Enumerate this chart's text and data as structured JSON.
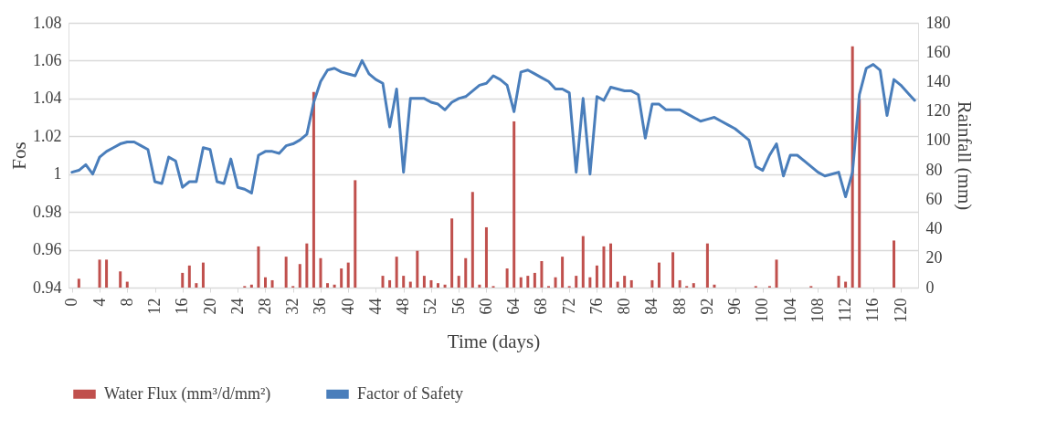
{
  "chart_data": {
    "type": "line",
    "xlabel": "Time (days)",
    "ylabel": "Fos",
    "y2label": "Rainfall (mm)",
    "x": [
      0,
      1,
      2,
      3,
      4,
      5,
      6,
      7,
      8,
      9,
      10,
      11,
      12,
      13,
      14,
      15,
      16,
      17,
      18,
      19,
      20,
      21,
      22,
      23,
      24,
      25,
      26,
      27,
      28,
      29,
      30,
      31,
      32,
      33,
      34,
      35,
      36,
      37,
      38,
      39,
      40,
      41,
      42,
      43,
      44,
      45,
      46,
      47,
      48,
      49,
      50,
      51,
      52,
      53,
      54,
      55,
      56,
      57,
      58,
      59,
      60,
      61,
      62,
      63,
      64,
      65,
      66,
      67,
      68,
      69,
      70,
      71,
      72,
      73,
      74,
      75,
      76,
      77,
      78,
      79,
      80,
      81,
      82,
      83,
      84,
      85,
      86,
      87,
      88,
      89,
      90,
      91,
      92,
      93,
      94,
      95,
      96,
      97,
      98,
      99,
      100,
      101,
      102,
      103,
      104,
      105,
      106,
      107,
      108,
      109,
      110,
      111,
      112,
      113,
      114,
      115,
      116,
      117,
      118,
      119,
      120,
      121,
      122
    ],
    "xlim": [
      -0.5,
      122.5
    ],
    "xticks": [
      0,
      4,
      8,
      12,
      16,
      20,
      24,
      28,
      32,
      36,
      40,
      44,
      48,
      52,
      56,
      60,
      64,
      68,
      72,
      76,
      80,
      84,
      88,
      92,
      96,
      100,
      104,
      108,
      112,
      116,
      120
    ],
    "ylim": [
      0.94,
      1.08
    ],
    "yticks": [
      0.94,
      0.96,
      0.98,
      1,
      1.02,
      1.04,
      1.06,
      1.08
    ],
    "y2lim": [
      0,
      180
    ],
    "y2ticks": [
      0,
      20,
      40,
      60,
      80,
      100,
      120,
      140,
      160,
      180
    ],
    "grid": "y",
    "legend": "bottom",
    "series": [
      {
        "name": "Water Flux (mm³/d/mm²)",
        "type": "bar",
        "axis": "y2",
        "color": "#c0504d",
        "x": [
          1,
          4,
          5,
          7,
          8,
          16,
          17,
          18,
          19,
          25,
          26,
          27,
          28,
          29,
          31,
          32,
          33,
          34,
          35,
          36,
          37,
          38,
          39,
          40,
          41,
          45,
          46,
          47,
          48,
          49,
          50,
          51,
          52,
          53,
          54,
          55,
          56,
          57,
          58,
          59,
          60,
          61,
          63,
          64,
          65,
          66,
          67,
          68,
          69,
          70,
          71,
          72,
          73,
          74,
          75,
          76,
          77,
          78,
          79,
          80,
          81,
          84,
          85,
          87,
          88,
          89,
          90,
          92,
          93,
          99,
          101,
          102,
          107,
          111,
          112,
          113,
          114,
          119
        ],
        "values": [
          6,
          19,
          19,
          11,
          4,
          10,
          15,
          3,
          17,
          1,
          2,
          28,
          7,
          5,
          21,
          1,
          16,
          30,
          133,
          20,
          3,
          2,
          13,
          17,
          73,
          8,
          5,
          21,
          8,
          4,
          25,
          8,
          5,
          3,
          2,
          47,
          8,
          20,
          65,
          2,
          41,
          1,
          13,
          113,
          7,
          8,
          10,
          18,
          1,
          7,
          21,
          1,
          8,
          35,
          7,
          15,
          28,
          30,
          4,
          8,
          5,
          5,
          17,
          24,
          5,
          1,
          3,
          30,
          2,
          1,
          1,
          19,
          1,
          8,
          4,
          164,
          128,
          32
        ]
      },
      {
        "name": "Factor of Safety",
        "color": "#4a7ebb",
        "values": [
          1.001,
          1.002,
          1.005,
          1.0,
          1.009,
          1.012,
          1.014,
          1.016,
          1.017,
          1.017,
          1.015,
          1.013,
          0.996,
          0.995,
          1.009,
          1.007,
          0.993,
          0.996,
          0.996,
          1.014,
          1.013,
          0.996,
          0.995,
          1.008,
          0.993,
          0.992,
          0.99,
          1.01,
          1.012,
          1.012,
          1.011,
          1.015,
          1.016,
          1.018,
          1.021,
          1.038,
          1.049,
          1.055,
          1.056,
          1.054,
          1.053,
          1.052,
          1.06,
          1.053,
          1.05,
          1.048,
          1.025,
          1.045,
          1.001,
          1.04,
          1.04,
          1.04,
          1.038,
          1.037,
          1.034,
          1.038,
          1.04,
          1.041,
          1.044,
          1.047,
          1.048,
          1.052,
          1.05,
          1.047,
          1.033,
          1.054,
          1.055,
          1.053,
          1.051,
          1.049,
          1.045,
          1.045,
          1.043,
          1.001,
          1.04,
          1.0,
          1.041,
          1.039,
          1.046,
          1.045,
          1.044,
          1.044,
          1.042,
          1.019,
          1.037,
          1.037,
          1.034,
          1.034,
          1.034,
          1.032,
          1.03,
          1.028,
          1.029,
          1.03,
          1.028,
          1.026,
          1.024,
          1.021,
          1.018,
          1.004,
          1.002,
          1.01,
          1.016,
          0.999,
          1.01,
          1.01,
          1.007,
          1.004,
          1.001,
          0.999,
          1.0,
          1.001,
          0.988,
          1.001,
          1.042,
          1.056,
          1.058,
          1.055,
          1.031,
          1.05,
          1.047,
          1.043,
          1.039
        ]
      }
    ]
  }
}
